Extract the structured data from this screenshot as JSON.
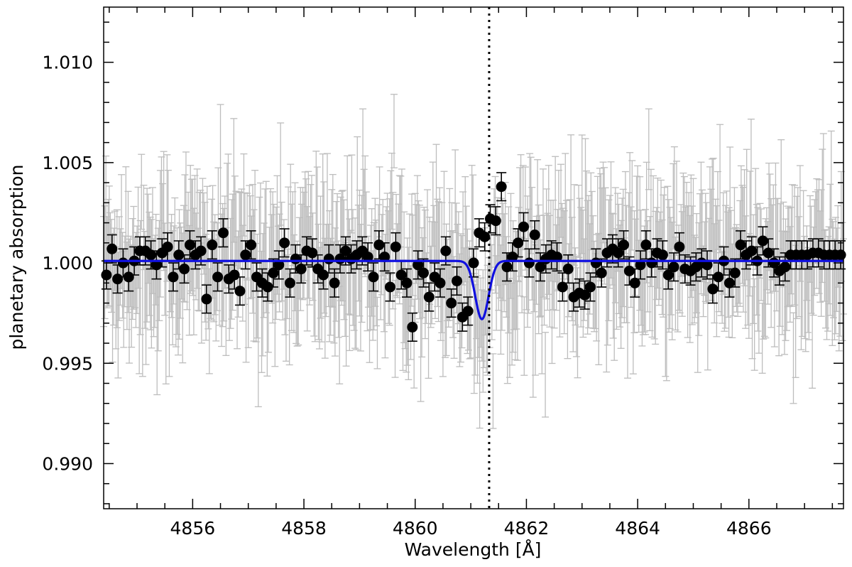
{
  "chart_data": {
    "type": "scatter",
    "xlabel": "Wavelength [Å]",
    "ylabel": "planetary absorption",
    "xlim": [
      4854.4,
      4867.7
    ],
    "ylim": [
      0.98775,
      1.01275
    ],
    "x_ticks": [
      4856,
      4858,
      4860,
      4862,
      4864,
      4866
    ],
    "x_tick_labels": [
      "4856",
      "4858",
      "4860",
      "4862",
      "4864",
      "4866"
    ],
    "y_ticks": [
      0.99,
      0.995,
      1.0,
      1.005,
      1.01
    ],
    "y_tick_labels": [
      "0.990",
      "0.995",
      "1.000",
      "1.005",
      "1.010"
    ],
    "grid": false,
    "line_center": 4861.33,
    "model": {
      "description": "Gaussian fit",
      "color": "#1010e0",
      "baseline": 1.0001,
      "depth": 0.0029,
      "center": 4861.2,
      "sigma": 0.12
    },
    "raw_points": {
      "color": "#bdbdbd",
      "x_start": 4854.4,
      "x_end": 4867.7,
      "step": 0.02,
      "typical_error": 0.0023
    },
    "binned_series": {
      "color": "#000000",
      "x": [
        4854.45,
        4854.55,
        4854.65,
        4854.75,
        4854.85,
        4854.95,
        4855.05,
        4855.15,
        4855.25,
        4855.35,
        4855.45,
        4855.55,
        4855.65,
        4855.75,
        4855.85,
        4855.95,
        4856.05,
        4856.15,
        4856.25,
        4856.35,
        4856.45,
        4856.55,
        4856.65,
        4856.75,
        4856.85,
        4856.95,
        4857.05,
        4857.15,
        4857.25,
        4857.35,
        4857.45,
        4857.55,
        4857.65,
        4857.75,
        4857.85,
        4857.95,
        4858.05,
        4858.15,
        4858.25,
        4858.35,
        4858.45,
        4858.55,
        4858.65,
        4858.75,
        4858.85,
        4858.95,
        4859.05,
        4859.15,
        4859.25,
        4859.35,
        4859.45,
        4859.55,
        4859.65,
        4859.75,
        4859.85,
        4859.95,
        4860.05,
        4860.15,
        4860.25,
        4860.35,
        4860.45,
        4860.55,
        4860.65,
        4860.75,
        4860.85,
        4860.95,
        4861.05,
        4861.15,
        4861.25,
        4861.35,
        4861.45,
        4861.55,
        4861.65,
        4861.75,
        4861.85,
        4861.95,
        4862.05,
        4862.15,
        4862.25,
        4862.35,
        4862.45,
        4862.55,
        4862.65,
        4862.75,
        4862.85,
        4862.95,
        4863.05,
        4863.15,
        4863.25,
        4863.35,
        4863.45,
        4863.55,
        4863.65,
        4863.75,
        4863.85,
        4863.95,
        4864.05,
        4864.15,
        4864.25,
        4864.35,
        4864.45,
        4864.55,
        4864.65,
        4864.75,
        4864.85,
        4864.95,
        4865.05,
        4865.15,
        4865.25,
        4865.35,
        4865.45,
        4865.55,
        4865.65,
        4865.75,
        4865.85,
        4865.95,
        4866.05,
        4866.15,
        4866.25,
        4866.35,
        4866.45,
        4866.55,
        4866.65,
        4866.75,
        4866.85,
        4866.95,
        4867.05,
        4867.15,
        4867.25,
        4867.35,
        4867.45,
        4867.55,
        4867.65
      ],
      "y": [
        0.9994,
        1.0007,
        0.9992,
        1.0,
        0.9993,
        1.0001,
        1.0006,
        1.0006,
        1.0004,
        0.9999,
        1.0005,
        1.0008,
        0.9993,
        1.0004,
        0.9997,
        1.0009,
        1.0004,
        1.0006,
        0.9982,
        1.0009,
        0.9993,
        1.0015,
        0.9992,
        0.9994,
        0.9986,
        1.0004,
        1.0009,
        0.9993,
        0.999,
        0.9988,
        0.9995,
        0.9999,
        1.001,
        0.999,
        1.0002,
        0.9997,
        1.0006,
        1.0005,
        0.9997,
        0.9994,
        1.0002,
        0.999,
        1.0002,
        1.0006,
        1.0002,
        1.0004,
        1.0006,
        1.0003,
        0.9993,
        1.0009,
        1.0003,
        0.9988,
        1.0008,
        0.9994,
        0.999,
        0.9968,
        0.9999,
        0.9995,
        0.9983,
        0.9993,
        0.999,
        1.0006,
        0.998,
        0.9991,
        0.9973,
        0.9976,
        1.0,
        1.0015,
        1.0013,
        1.0022,
        1.0021,
        1.0038,
        0.9998,
        1.0003,
        1.001,
        1.0018,
        1.0,
        1.0014,
        0.9998,
        1.0002,
        1.0004,
        1.0003,
        0.9988,
        0.9997,
        0.9983,
        0.9985,
        0.9984,
        0.9988,
        1.0,
        0.9995,
        1.0005,
        1.0007,
        1.0005,
        1.0009,
        0.9996,
        0.999,
        0.9999,
        1.0009,
        1.0,
        1.0005,
        1.0004,
        0.9994,
        0.9998,
        1.0008,
        0.9997,
        0.9996,
        0.9998,
        1.0,
        0.9999,
        0.9987,
        0.9993,
        1.0001,
        0.999,
        0.9995,
        1.0009,
        1.0004,
        1.0006,
        1.0001,
        1.0011,
        1.0005,
        1.0,
        0.9996,
        0.9998,
        1.0004,
        1.0004,
        1.0004,
        1.0004,
        1.0005,
        1.0005,
        1.0004,
        1.0004,
        1.0004,
        1.0004
      ],
      "error": 0.0007
    },
    "colors": {
      "vertical_line": "#000000",
      "axes": "#000000"
    }
  }
}
